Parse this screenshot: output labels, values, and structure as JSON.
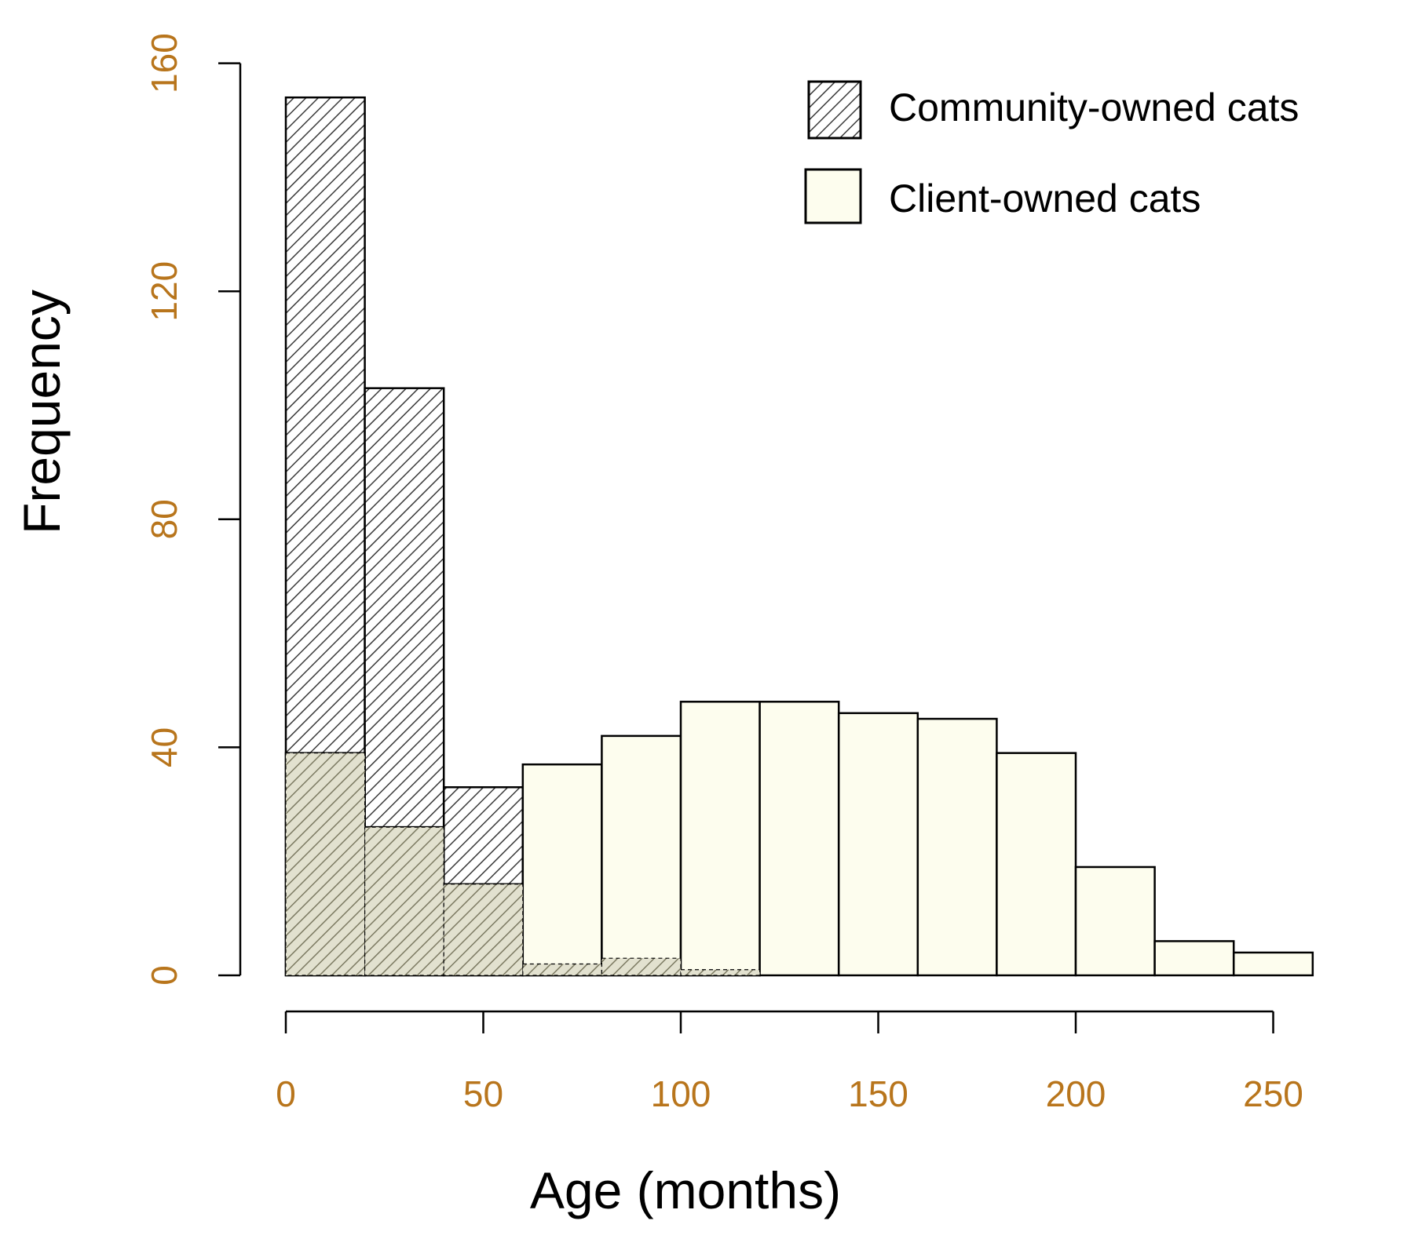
{
  "colors": {
    "client_fill": "#fdfdee",
    "overlap_fill": "#e2e1cf",
    "hatch_dark": "#3a3a3a",
    "hatch_overlap": "#7c7a62",
    "stroke": "#000000",
    "tick_text": "#b8751c"
  },
  "chart_data": {
    "type": "bar",
    "subtype": "overlaid-histogram",
    "title": "",
    "xlabel": "Age (months)",
    "ylabel": "Frequency",
    "xlim": [
      0,
      260
    ],
    "ylim": [
      0,
      160
    ],
    "x_ticks": [
      0,
      50,
      100,
      150,
      200,
      250
    ],
    "y_ticks": [
      0,
      40,
      80,
      120,
      160
    ],
    "bin_edges": [
      0,
      20,
      40,
      60,
      80,
      100,
      120,
      140,
      160,
      180,
      200,
      220,
      240,
      260
    ],
    "grid": false,
    "legend": {
      "position": "top-right",
      "entries": [
        {
          "label": "Community-owned cats",
          "pattern": "hatched"
        },
        {
          "label": "Client-owned cats",
          "pattern": "solid"
        }
      ]
    },
    "series": [
      {
        "name": "Community-owned cats",
        "values": [
          154,
          103,
          33,
          2,
          3,
          1,
          0,
          0,
          0,
          0,
          0,
          0,
          0
        ]
      },
      {
        "name": "Client-owned cats",
        "values": [
          39,
          26,
          16,
          37,
          42,
          48,
          48,
          46,
          45,
          39,
          19,
          6,
          4
        ]
      }
    ]
  }
}
